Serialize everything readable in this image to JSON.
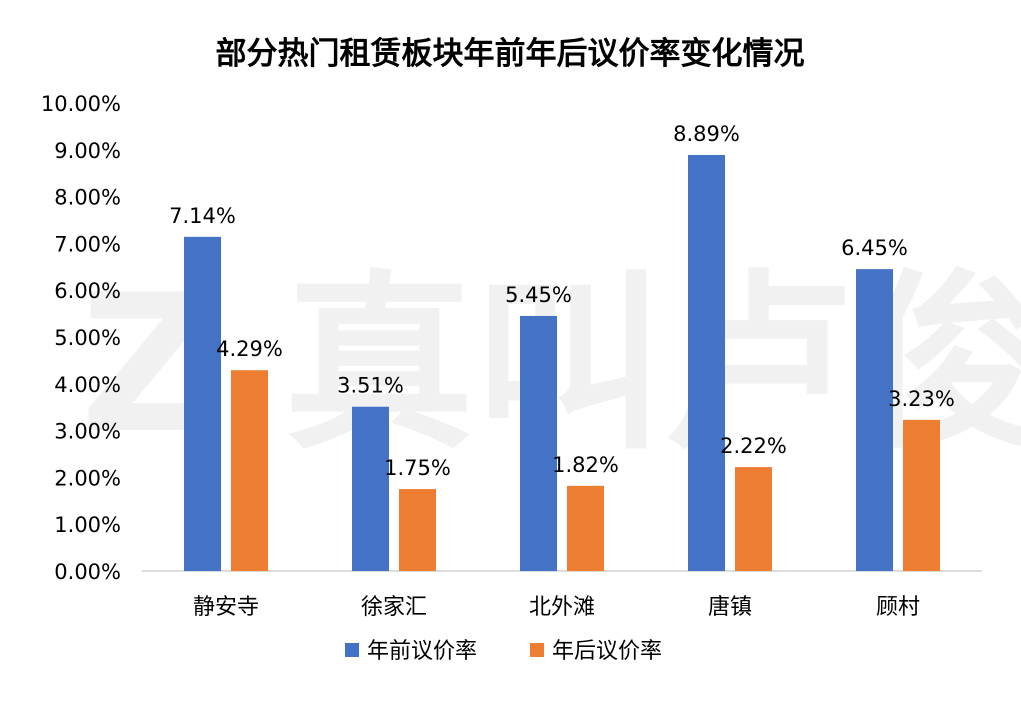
{
  "chart_data": {
    "type": "bar",
    "title": "部分热门租赁板块年前年后议价率变化情况",
    "categories": [
      "静安寺",
      "徐家汇",
      "北外滩",
      "唐镇",
      "顾村"
    ],
    "series": [
      {
        "name": "年前议价率",
        "values": [
          7.14,
          3.51,
          5.45,
          8.89,
          6.45
        ],
        "labels": [
          "7.14%",
          "3.51%",
          "5.45%",
          "8.89%",
          "6.45%"
        ],
        "color": "#4472C4"
      },
      {
        "name": "年后议价率",
        "values": [
          4.29,
          1.75,
          1.82,
          2.22,
          3.23
        ],
        "labels": [
          "4.29%",
          "1.75%",
          "1.82%",
          "2.22%",
          "3.23%"
        ],
        "color": "#ED7D31"
      }
    ],
    "yticks": [
      "0.00%",
      "1.00%",
      "2.00%",
      "3.00%",
      "4.00%",
      "5.00%",
      "6.00%",
      "7.00%",
      "8.00%",
      "9.00%",
      "10.00%"
    ],
    "ylim": [
      0,
      10
    ],
    "grid": false,
    "legend": "bottom",
    "watermark": "Z 真叫卢俊"
  }
}
